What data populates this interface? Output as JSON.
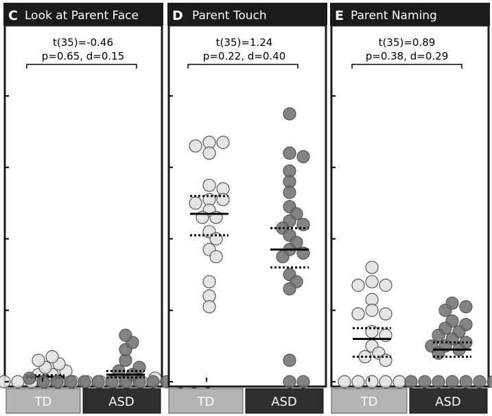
{
  "chart_data": [
    {
      "type": "scatter",
      "panel_letter": "C",
      "title": "Look at Parent Face",
      "stat_line1": "t(35)=-0.46",
      "stat_line2": "p=0.65, d=0.15",
      "categories": [
        "TD",
        "ASD"
      ],
      "ylim": [
        0,
        4
      ],
      "series": [
        {
          "name": "TD",
          "values": [
            0,
            0,
            0,
            0,
            0,
            0,
            0,
            0,
            0,
            0,
            0,
            0,
            0,
            0,
            0.05,
            0.05,
            0.1,
            0.1,
            0.15,
            0.2,
            0.25,
            0.3,
            0.35
          ],
          "mean": 0.07,
          "ci": [
            0.05,
            0.09
          ]
        },
        {
          "name": "ASD",
          "values": [
            0,
            0,
            0,
            0,
            0,
            0,
            0,
            0,
            0,
            0,
            0,
            0,
            0,
            0.05,
            0.05,
            0.1,
            0.15,
            0.2,
            0.3,
            0.45,
            0.55,
            0.65
          ],
          "mean": 0.1,
          "ci": [
            0.06,
            0.15
          ]
        }
      ]
    },
    {
      "type": "scatter",
      "panel_letter": "D",
      "title": "Parent Touch",
      "stat_line1": "t(35)=1.24",
      "stat_line2": "p=0.22, d=0.40",
      "categories": [
        "TD",
        "ASD"
      ],
      "ylim": [
        0,
        4
      ],
      "series": [
        {
          "name": "TD",
          "values": [
            3.35,
            3.35,
            3.3,
            3.2,
            2.75,
            2.7,
            2.55,
            2.55,
            2.5,
            2.4,
            2.3,
            2.3,
            2.1,
            2.0,
            1.85,
            1.75,
            1.4,
            1.2,
            1.05
          ],
          "mean": 2.35,
          "ci": [
            2.05,
            2.6
          ]
        },
        {
          "name": "ASD",
          "values": [
            3.75,
            3.2,
            3.15,
            2.95,
            2.8,
            2.65,
            2.45,
            2.35,
            2.25,
            2.2,
            2.15,
            2.05,
            1.95,
            1.85,
            1.8,
            1.75,
            1.5,
            1.4,
            1.3,
            0.3,
            0,
            0
          ],
          "mean": 1.85,
          "ci": [
            1.6,
            2.15
          ]
        }
      ]
    },
    {
      "type": "scatter",
      "panel_letter": "E",
      "title": "Parent Naming",
      "stat_line1": "t(35)=0.89",
      "stat_line2": "p=0.38, d=0.29",
      "categories": [
        "TD",
        "ASD"
      ],
      "ylim": [
        0,
        4
      ],
      "series": [
        {
          "name": "TD",
          "values": [
            1.6,
            1.4,
            1.35,
            1.35,
            1.15,
            1.0,
            0.95,
            0.95,
            0.7,
            0.65,
            0.5,
            0.4,
            0.35,
            0.3,
            0,
            0,
            0,
            0,
            0
          ],
          "mean": 0.6,
          "ci": [
            0.35,
            0.75
          ]
        },
        {
          "name": "ASD",
          "values": [
            1.1,
            1.05,
            1.0,
            0.85,
            0.8,
            0.75,
            0.7,
            0.65,
            0.6,
            0.55,
            0.5,
            0.5,
            0.45,
            0.4,
            0,
            0,
            0,
            0,
            0,
            0,
            0,
            0
          ],
          "mean": 0.45,
          "ci": [
            0.35,
            0.55
          ]
        }
      ]
    }
  ],
  "style": {
    "td_fill": "#e0e0e0",
    "asd_fill": "#6e6e6e",
    "td_button": "#b4b4b4",
    "asd_button": "#2e2e2e"
  }
}
